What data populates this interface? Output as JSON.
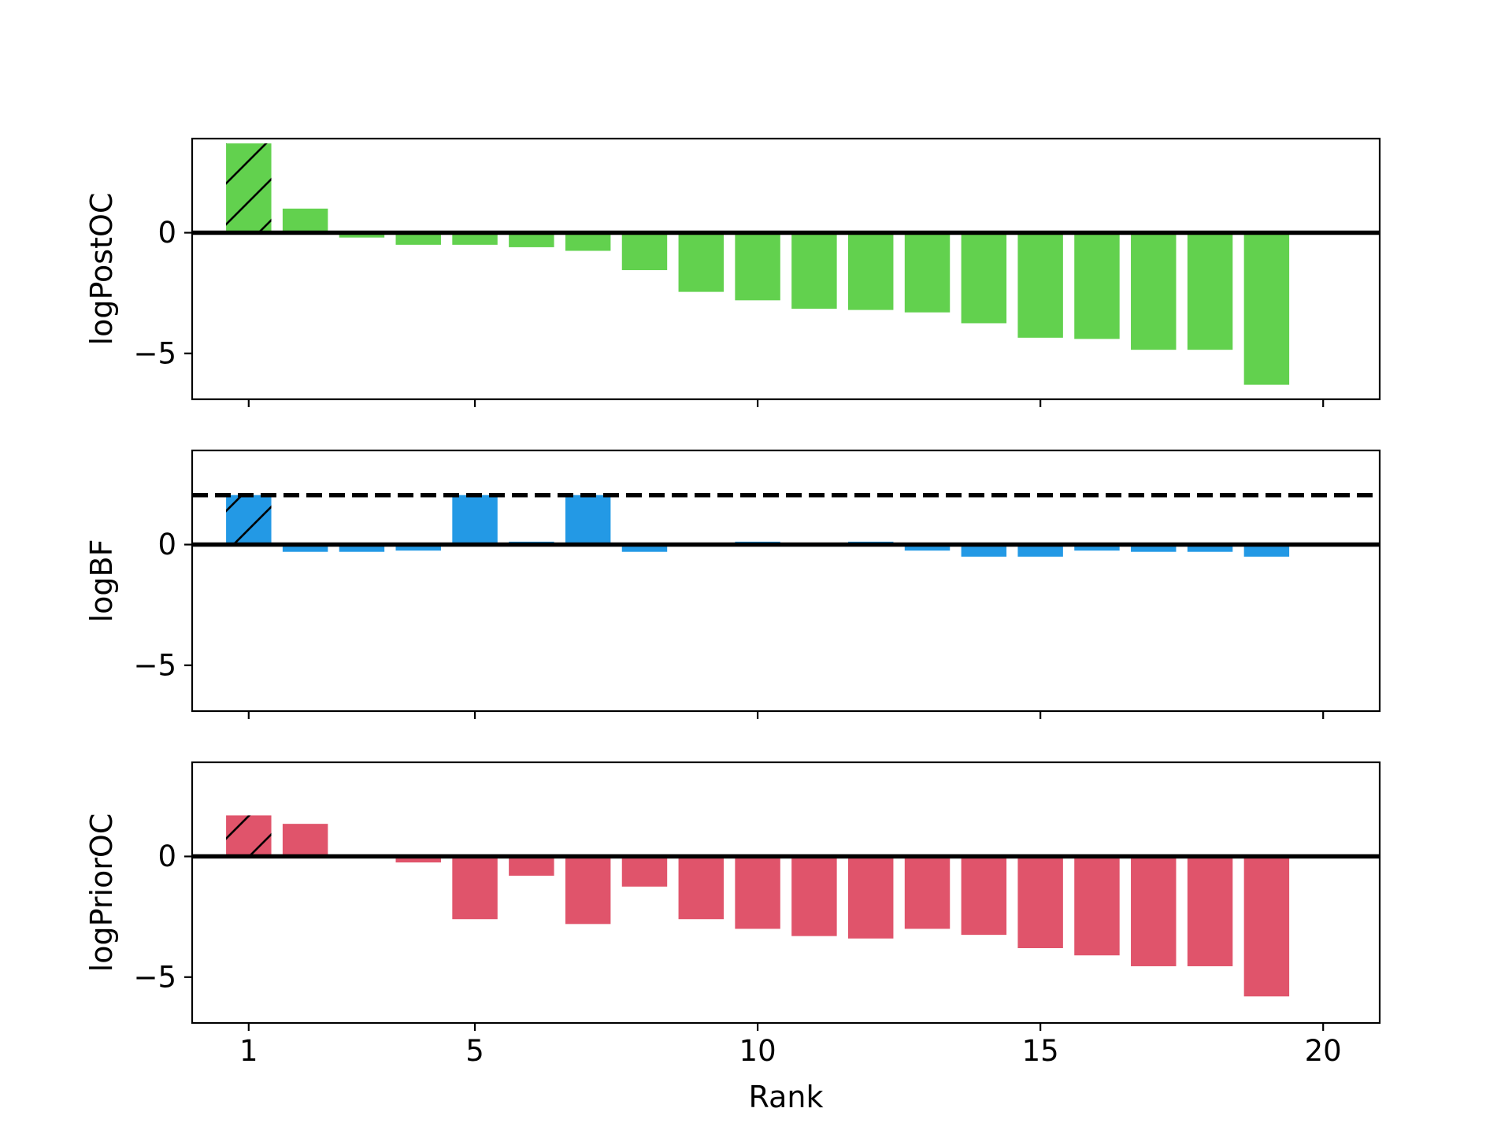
{
  "chart_data": [
    {
      "type": "bar",
      "ylabel": "logPostOC",
      "xlabel": "",
      "x": [
        1,
        2,
        3,
        4,
        5,
        6,
        7,
        8,
        9,
        10,
        11,
        12,
        13,
        14,
        15,
        16,
        17,
        18,
        19
      ],
      "values": [
        3.7,
        1.0,
        -0.2,
        -0.5,
        -0.5,
        -0.6,
        -0.75,
        -1.55,
        -2.45,
        -2.8,
        -3.15,
        -3.2,
        -3.3,
        -3.75,
        -4.35,
        -4.4,
        -4.85,
        -4.85,
        -6.3
      ],
      "color": "#62d14e",
      "hatched_index": 0,
      "reference_line": 0,
      "dashed_line": null,
      "xlim": [
        0,
        21
      ],
      "ylim": [
        -6.9,
        3.9
      ],
      "yticks": [
        0,
        -5
      ],
      "ytick_labels": [
        "0",
        "−5"
      ],
      "xticks": [
        1,
        5,
        10,
        15,
        20
      ],
      "xtick_labels": []
    },
    {
      "type": "bar",
      "ylabel": "logBF",
      "xlabel": "",
      "x": [
        1,
        2,
        3,
        4,
        5,
        6,
        7,
        8,
        9,
        10,
        11,
        12,
        13,
        14,
        15,
        16,
        17,
        18,
        19
      ],
      "values": [
        2.05,
        -0.3,
        -0.3,
        -0.25,
        2.05,
        0.12,
        2.05,
        -0.3,
        0.0,
        0.12,
        0.0,
        0.12,
        -0.25,
        -0.5,
        -0.5,
        -0.25,
        -0.3,
        -0.3,
        -0.5
      ],
      "color": "#2399e5",
      "hatched_index": 0,
      "reference_line": 0,
      "dashed_line": 2.05,
      "xlim": [
        0,
        21
      ],
      "ylim": [
        -6.9,
        3.9
      ],
      "yticks": [
        0,
        -5
      ],
      "ytick_labels": [
        "0",
        "−5"
      ],
      "xticks": [
        1,
        5,
        10,
        15,
        20
      ],
      "xtick_labels": []
    },
    {
      "type": "bar",
      "ylabel": "logPriorOC",
      "xlabel": "Rank",
      "x": [
        1,
        2,
        3,
        4,
        5,
        6,
        7,
        8,
        9,
        10,
        11,
        12,
        13,
        14,
        15,
        16,
        17,
        18,
        19
      ],
      "values": [
        1.7,
        1.35,
        0.0,
        -0.25,
        -2.6,
        -0.8,
        -2.8,
        -1.25,
        -2.6,
        -3.0,
        -3.3,
        -3.4,
        -3.0,
        -3.25,
        -3.8,
        -4.1,
        -4.55,
        -4.55,
        -5.8
      ],
      "color": "#e0546b",
      "hatched_index": 0,
      "reference_line": 0,
      "dashed_line": null,
      "xlim": [
        0,
        21
      ],
      "ylim": [
        -6.9,
        3.9
      ],
      "yticks": [
        0,
        -5
      ],
      "ytick_labels": [
        "0",
        "−5"
      ],
      "xticks": [
        1,
        5,
        10,
        15,
        20
      ],
      "xtick_labels": [
        "1",
        "5",
        "10",
        "15",
        "20"
      ]
    }
  ]
}
